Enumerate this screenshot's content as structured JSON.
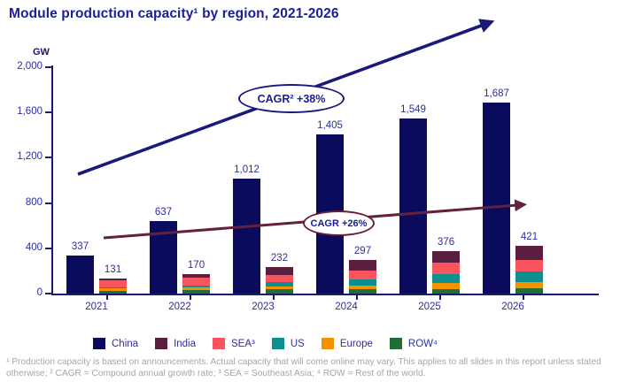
{
  "header": {
    "title": "Module production capacity¹ by region, 2021-2026"
  },
  "chart_data": {
    "type": "bar",
    "subtype": "grouped: single navy series + stacked regional bar per year",
    "title": "Module production capacity¹ by region, 2021-2026",
    "ylabel": "GW",
    "xlabel": "",
    "grid": false,
    "legend_position": "bottom",
    "categories": [
      "2021",
      "2022",
      "2023",
      "2024",
      "2025",
      "2026"
    ],
    "ylim": [
      0,
      2000
    ],
    "ytick_values": [
      0,
      400,
      800,
      1200,
      1600,
      2000
    ],
    "ytick_labels": [
      "0",
      "400",
      "800",
      "1,200",
      "1,600",
      "2,000"
    ],
    "china_series": {
      "key": "china",
      "name": "China",
      "color": "#0b0b5e",
      "values": [
        337,
        637,
        1012,
        1405,
        1549,
        1687
      ],
      "labels": [
        "337",
        "637",
        "1,012",
        "1,405",
        "1,549",
        "1,687"
      ]
    },
    "stacked_totals": [
      131,
      170,
      232,
      297,
      376,
      421
    ],
    "stacked_total_labels": [
      "131",
      "170",
      "232",
      "297",
      "376",
      "421"
    ],
    "stacked_series_note": "bottom-to-top order; segment values estimated from pixel heights, totals are labeled",
    "stacked_series": [
      {
        "key": "row",
        "name": "ROW⁴",
        "color": "#206e33",
        "values": [
          26,
          31,
          37,
          40,
          40,
          44
        ]
      },
      {
        "key": "europe",
        "name": "Europe",
        "color": "#f39200",
        "values": [
          18,
          23,
          29,
          34,
          50,
          58
        ]
      },
      {
        "key": "us",
        "name": "US",
        "color": "#0e8f8f",
        "values": [
          12,
          18,
          36,
          47,
          82,
          94
        ]
      },
      {
        "key": "sea",
        "name": "SEA³",
        "color": "#f9555e",
        "values": [
          61,
          71,
          65,
          81,
          99,
          100
        ]
      },
      {
        "key": "india",
        "name": "India",
        "color": "#5a1f3e",
        "values": [
          14,
          27,
          65,
          95,
          105,
          125
        ]
      }
    ],
    "annotations": [
      {
        "key": "cagr-china",
        "label": "CAGR² +38%",
        "arrow_color": "#1a1a7a",
        "applies_to": "China"
      },
      {
        "key": "cagr-rest",
        "label": "CAGR +26%",
        "arrow_color": "#63203f",
        "applies_to": "Rest of regions"
      }
    ],
    "legend": [
      {
        "key": "china",
        "label": "China",
        "color": "#0b0b5e"
      },
      {
        "key": "india",
        "label": "India",
        "color": "#5a1f3e"
      },
      {
        "key": "sea",
        "label": "SEA³",
        "color": "#f9555e"
      },
      {
        "key": "us",
        "label": "US",
        "color": "#0e8f8f"
      },
      {
        "key": "europe",
        "label": "Europe",
        "color": "#f39200"
      },
      {
        "key": "row",
        "label": "ROW⁴",
        "color": "#206e33"
      }
    ]
  },
  "footnote": "¹ Production capacity is based on announcements. Actual capacity that will come online may vary. This applies to all slides in this report unless stated otherwise; ² CAGR = Compound annual growth rate; ³ SEA = Southeast Asia; ⁴ ROW = Rest of the world."
}
